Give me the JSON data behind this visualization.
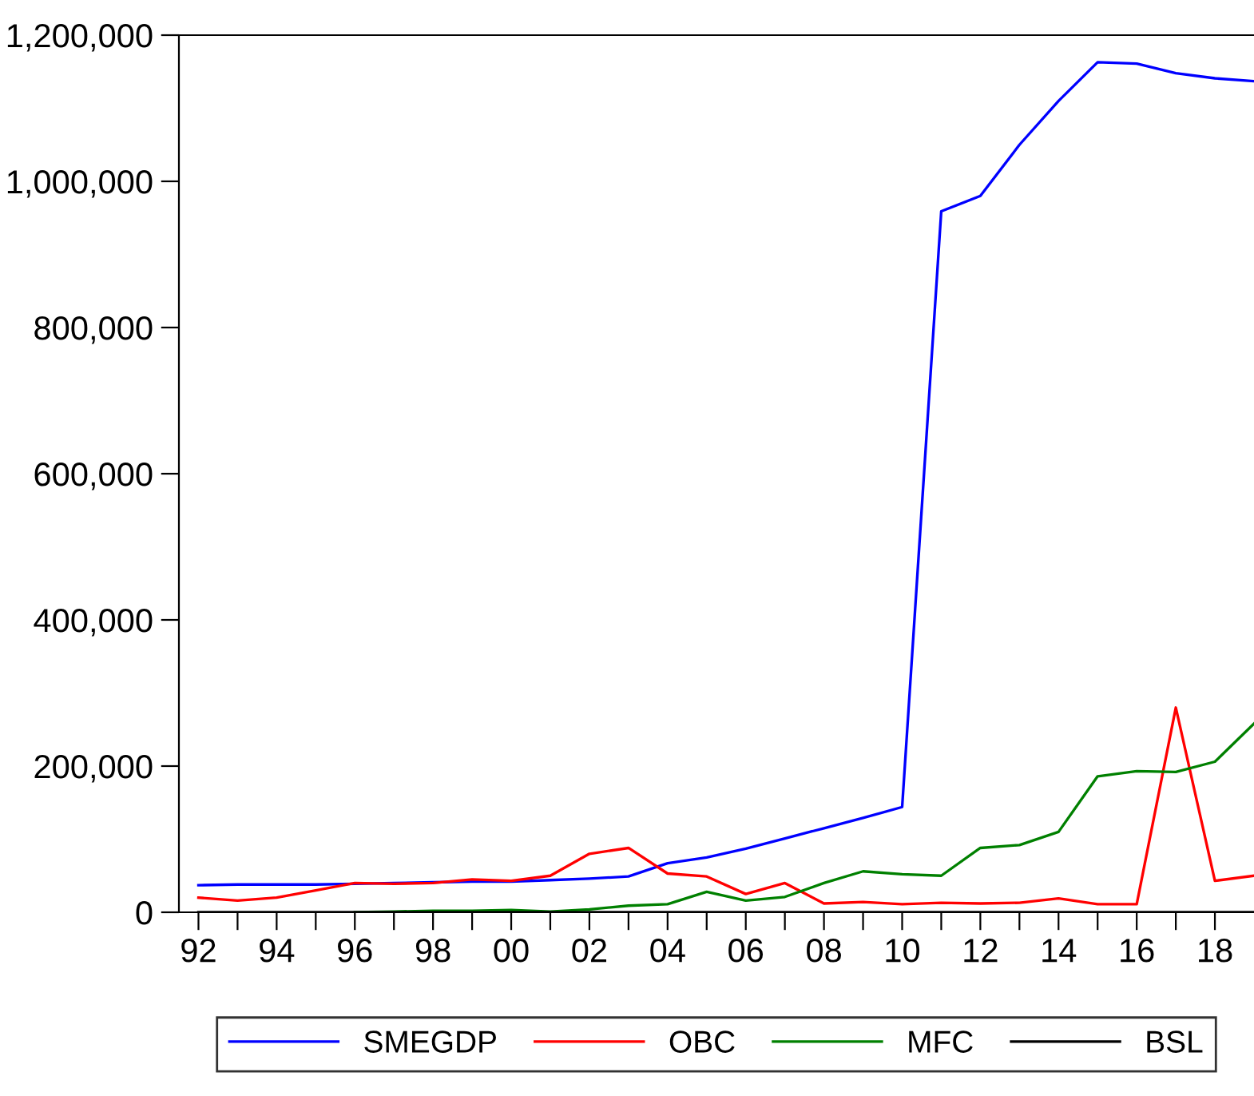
{
  "chart_data": {
    "type": "line",
    "x": [
      1992,
      1993,
      1994,
      1995,
      1996,
      1997,
      1998,
      1999,
      2000,
      2001,
      2002,
      2003,
      2004,
      2005,
      2006,
      2007,
      2008,
      2009,
      2010,
      2011,
      2012,
      2013,
      2014,
      2015,
      2016,
      2017,
      2018,
      2019
    ],
    "series": [
      {
        "name": "SMEGDP",
        "color": "#0000ff",
        "values": [
          37000,
          38000,
          38000,
          38000,
          39000,
          40000,
          41000,
          42000,
          42000,
          44000,
          46000,
          49000,
          67000,
          75000,
          87000,
          101000,
          115000,
          129000,
          144000,
          959000,
          980000,
          1050000,
          1110000,
          1163000,
          1161000,
          1148000,
          1141000,
          1137000
        ]
      },
      {
        "name": "OBC",
        "color": "#ff0000",
        "values": [
          20000,
          16000,
          20000,
          30000,
          40000,
          39000,
          40000,
          45000,
          43000,
          50000,
          80000,
          88000,
          53000,
          49000,
          25000,
          40000,
          12000,
          14000,
          11000,
          13000,
          12000,
          13000,
          19000,
          11000,
          11000,
          280000,
          43000,
          50000
        ]
      },
      {
        "name": "MFC",
        "color": "#008000",
        "values": [
          null,
          null,
          null,
          null,
          0,
          1000,
          2000,
          2000,
          3000,
          1000,
          4000,
          9000,
          11000,
          28000,
          16000,
          21000,
          40000,
          56000,
          52000,
          50000,
          88000,
          92000,
          110000,
          186000,
          193000,
          192000,
          206000,
          258000
        ]
      },
      {
        "name": "BSL",
        "color": "#000000",
        "values": [
          0,
          0,
          0,
          0,
          0,
          0,
          0,
          0,
          0,
          0,
          0,
          0,
          0,
          0,
          0,
          0,
          0,
          0,
          0,
          0,
          0,
          0,
          0,
          0,
          0,
          0,
          0,
          0
        ]
      }
    ],
    "xlim": [
      1991.5,
      2019
    ],
    "xticks": [
      {
        "value": 1992,
        "label": "92"
      },
      {
        "value": 1993,
        "label": null
      },
      {
        "value": 1994,
        "label": "94"
      },
      {
        "value": 1995,
        "label": null
      },
      {
        "value": 1996,
        "label": "96"
      },
      {
        "value": 1997,
        "label": null
      },
      {
        "value": 1998,
        "label": "98"
      },
      {
        "value": 1999,
        "label": null
      },
      {
        "value": 2000,
        "label": "00"
      },
      {
        "value": 2001,
        "label": null
      },
      {
        "value": 2002,
        "label": "02"
      },
      {
        "value": 2003,
        "label": null
      },
      {
        "value": 2004,
        "label": "04"
      },
      {
        "value": 2005,
        "label": null
      },
      {
        "value": 2006,
        "label": "06"
      },
      {
        "value": 2007,
        "label": null
      },
      {
        "value": 2008,
        "label": "08"
      },
      {
        "value": 2009,
        "label": null
      },
      {
        "value": 2010,
        "label": "10"
      },
      {
        "value": 2011,
        "label": null
      },
      {
        "value": 2012,
        "label": "12"
      },
      {
        "value": 2013,
        "label": null
      },
      {
        "value": 2014,
        "label": "14"
      },
      {
        "value": 2015,
        "label": null
      },
      {
        "value": 2016,
        "label": "16"
      },
      {
        "value": 2017,
        "label": null
      },
      {
        "value": 2018,
        "label": "18"
      }
    ],
    "ylim": [
      0,
      1200000
    ],
    "yticks": [
      0,
      {
        "value": 200000,
        "label": "200,000"
      },
      {
        "value": 400000,
        "label": "400,000"
      },
      {
        "value": 600000,
        "label": "600,000"
      },
      {
        "value": 800000,
        "label": "800,000"
      },
      {
        "value": 1000000,
        "label": "1,000,000"
      },
      {
        "value": 1200000,
        "label": "1,200,000"
      }
    ],
    "grid": false,
    "legend": "bottom",
    "marker": "none",
    "line_style": "solid"
  }
}
